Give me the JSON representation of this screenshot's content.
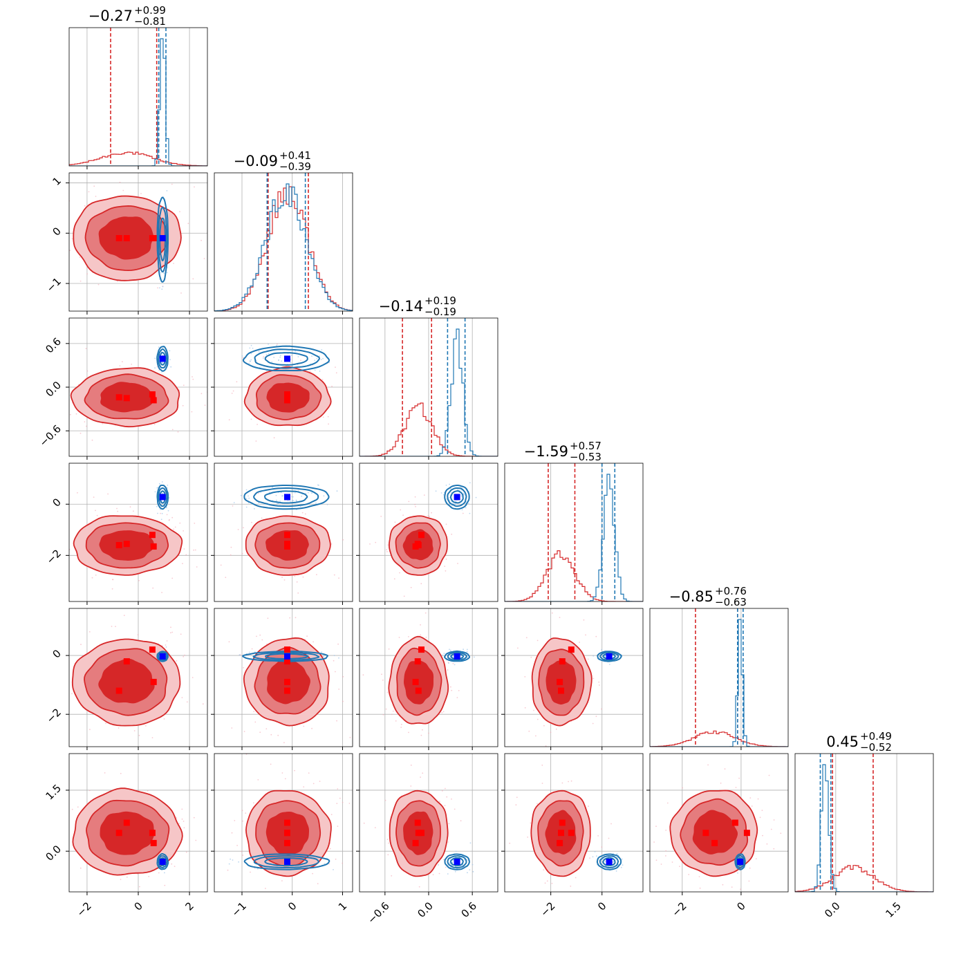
{
  "chart_data": {
    "type": "corner",
    "n_params": 6,
    "titles": [
      {
        "median": "−0.27",
        "plus": "+0.99",
        "minus": "−0.81"
      },
      {
        "median": "−0.09",
        "plus": "+0.41",
        "minus": "−0.39"
      },
      {
        "median": "−0.14",
        "plus": "+0.19",
        "minus": "−0.19"
      },
      {
        "median": "−1.59",
        "plus": "+0.57",
        "minus": "−0.53"
      },
      {
        "median": "−0.85",
        "plus": "+0.76",
        "minus": "−0.63"
      },
      {
        "median": "0.45",
        "plus": "+0.49",
        "minus": "−0.52"
      }
    ],
    "ranges": [
      [
        -2.7,
        2.7
      ],
      [
        -1.55,
        1.2
      ],
      [
        -0.95,
        0.95
      ],
      [
        -3.8,
        1.6
      ],
      [
        -3.1,
        1.6
      ],
      [
        -1.0,
        2.4
      ]
    ],
    "xticks": [
      {
        "values": [
          -2,
          0,
          2
        ],
        "labels": [
          "−2",
          "0",
          "2"
        ]
      },
      {
        "values": [
          -1,
          0,
          1
        ],
        "labels": [
          "−1",
          "0",
          "1"
        ]
      },
      {
        "values": [
          -0.6,
          0.0,
          0.6
        ],
        "labels": [
          "−0.6",
          "0.0",
          "0.6"
        ]
      },
      {
        "values": [
          -2,
          0
        ],
        "labels": [
          "−2",
          "0"
        ]
      },
      {
        "values": [
          -2,
          0
        ],
        "labels": [
          "−2",
          "0"
        ]
      },
      {
        "values": [
          0.0,
          1.5
        ],
        "labels": [
          "0.0",
          "1.5"
        ]
      }
    ],
    "yticks": [
      null,
      {
        "values": [
          -1,
          0,
          1
        ],
        "labels": [
          "−1",
          "0",
          "1"
        ]
      },
      {
        "values": [
          -0.6,
          0.0,
          0.6
        ],
        "labels": [
          "−0.6",
          "0.0",
          "0.6"
        ]
      },
      {
        "values": [
          -2,
          0
        ],
        "labels": [
          "−2",
          "0"
        ]
      },
      {
        "values": [
          -2,
          0
        ],
        "labels": [
          "−2",
          "0"
        ]
      },
      {
        "values": [
          0.0,
          1.5
        ],
        "labels": [
          "0.0",
          "1.5"
        ]
      }
    ],
    "colors": {
      "red": "#d62728",
      "blue": "#1f77b4",
      "red_marker": "#ff0000",
      "blue_marker": "#0000ff",
      "grid": "#b0b0b0"
    },
    "red_posterior": {
      "mean": [
        -0.45,
        -0.09,
        -0.14,
        -1.6,
        -0.9,
        0.45
      ],
      "sd": [
        1.0,
        0.4,
        0.19,
        0.55,
        0.7,
        0.5
      ],
      "quantiles": [
        [
          -1.08,
          0.72
        ],
        [
          -0.48,
          0.32
        ],
        [
          -0.36,
          0.04
        ],
        [
          -2.1,
          -1.06
        ],
        [
          -1.55,
          -0.12
        ],
        [
          -0.08,
          0.92
        ]
      ],
      "markers": [
        [
          -0.75,
          -0.1,
          -0.14,
          -1.6,
          -1.2,
          0.45
        ],
        [
          -0.45,
          -0.1,
          -0.15,
          -1.55,
          -0.2,
          0.7
        ],
        [
          0.55,
          -0.1,
          -0.1,
          -1.2,
          0.2,
          0.45
        ],
        [
          0.6,
          -0.1,
          -0.18,
          -1.65,
          -0.9,
          0.2
        ]
      ]
    },
    "blue_posterior": {
      "mean": [
        0.95,
        -0.12,
        0.39,
        0.28,
        -0.03,
        -0.26
      ],
      "sd": [
        0.1,
        0.4,
        0.08,
        0.22,
        0.08,
        0.09
      ],
      "quantiles": [
        [
          0.8,
          1.08
        ],
        [
          -0.5,
          0.26
        ],
        [
          0.26,
          0.5
        ],
        [
          0.0,
          0.5
        ],
        [
          -0.12,
          0.07
        ],
        [
          -0.38,
          -0.12
        ]
      ],
      "markers": [
        [
          0.95,
          -0.1,
          0.39,
          0.28,
          -0.03,
          -0.26
        ]
      ]
    }
  }
}
